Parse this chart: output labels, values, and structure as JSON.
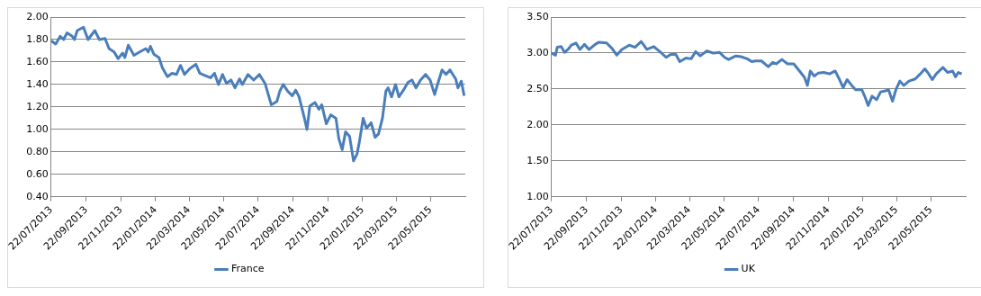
{
  "chart_data": [
    {
      "type": "line",
      "x": [
        "2013-07-22",
        "2013-07-30",
        "2013-08-07",
        "2013-08-13",
        "2013-08-19",
        "2013-08-28",
        "2013-09-01",
        "2013-09-06",
        "2013-09-17",
        "2013-09-25",
        "2013-10-07",
        "2013-10-15",
        "2013-10-25",
        "2013-11-01",
        "2013-11-10",
        "2013-11-17",
        "2013-11-25",
        "2013-11-29",
        "2013-12-05",
        "2013-12-15",
        "2013-12-25",
        "2014-01-05",
        "2014-01-09",
        "2014-01-13",
        "2014-01-19",
        "2014-01-28",
        "2014-02-03",
        "2014-02-12",
        "2014-02-20",
        "2014-02-28",
        "2014-03-07",
        "2014-03-14",
        "2014-03-23",
        "2014-04-03",
        "2014-04-10",
        "2014-04-19",
        "2014-04-29",
        "2014-05-06",
        "2014-05-13",
        "2014-05-20",
        "2014-05-27",
        "2014-06-04",
        "2014-06-11",
        "2014-06-19",
        "2014-06-24",
        "2014-07-04",
        "2014-07-14",
        "2014-07-24",
        "2014-08-03",
        "2014-08-14",
        "2014-08-24",
        "2014-08-29",
        "2014-09-04",
        "2014-09-12",
        "2014-09-20",
        "2014-09-26",
        "2014-10-02",
        "2014-10-10",
        "2014-10-16",
        "2014-10-21",
        "2014-10-30",
        "2014-11-06",
        "2014-11-11",
        "2014-11-19",
        "2014-11-27",
        "2014-12-06",
        "2014-12-11",
        "2014-12-17",
        "2014-12-23",
        "2014-12-30",
        "2015-01-06",
        "2015-01-12",
        "2015-01-16",
        "2015-01-23",
        "2015-01-29",
        "2015-02-06",
        "2015-02-13",
        "2015-02-19",
        "2015-02-26",
        "2015-03-04",
        "2015-03-08",
        "2015-03-14",
        "2015-03-21",
        "2015-03-27",
        "2015-04-04",
        "2015-04-12",
        "2015-04-19",
        "2015-04-26",
        "2015-05-04",
        "2015-05-13",
        "2015-05-21",
        "2015-05-29",
        "2015-06-03",
        "2015-06-11",
        "2015-06-18",
        "2015-06-25",
        "2015-07-05",
        "2015-07-09",
        "2015-07-15",
        "2015-07-20"
      ],
      "series": [
        {
          "name": "France",
          "color": "#4a7ebb",
          "values": [
            1.79,
            1.76,
            1.83,
            1.8,
            1.86,
            1.83,
            1.8,
            1.88,
            1.91,
            1.8,
            1.88,
            1.8,
            1.81,
            1.72,
            1.69,
            1.63,
            1.68,
            1.64,
            1.75,
            1.66,
            1.69,
            1.72,
            1.69,
            1.74,
            1.67,
            1.64,
            1.55,
            1.47,
            1.5,
            1.49,
            1.57,
            1.49,
            1.54,
            1.58,
            1.5,
            1.48,
            1.46,
            1.5,
            1.4,
            1.49,
            1.41,
            1.44,
            1.37,
            1.45,
            1.4,
            1.49,
            1.44,
            1.49,
            1.41,
            1.22,
            1.25,
            1.34,
            1.4,
            1.34,
            1.3,
            1.35,
            1.29,
            1.13,
            1.0,
            1.21,
            1.24,
            1.18,
            1.22,
            1.05,
            1.13,
            1.1,
            0.92,
            0.82,
            0.98,
            0.94,
            0.72,
            0.78,
            0.88,
            1.1,
            1.01,
            1.06,
            0.93,
            0.96,
            1.1,
            1.34,
            1.37,
            1.29,
            1.4,
            1.29,
            1.35,
            1.42,
            1.44,
            1.37,
            1.44,
            1.49,
            1.44,
            1.31,
            1.4,
            1.53,
            1.49,
            1.53,
            1.45,
            1.37,
            1.43,
            1.3
          ]
        }
      ],
      "xlim": [
        "2013-07-22",
        "2015-07-22"
      ],
      "xticks": [
        {
          "value": "2013-07-22",
          "label": "22/07/2013"
        },
        {
          "value": "2013-09-22",
          "label": "22/09/2013"
        },
        {
          "value": "2013-11-22",
          "label": "22/11/2013"
        },
        {
          "value": "2014-01-22",
          "label": "22/01/2014"
        },
        {
          "value": "2014-03-22",
          "label": "22/03/2014"
        },
        {
          "value": "2014-05-22",
          "label": "22/05/2014"
        },
        {
          "value": "2014-07-22",
          "label": "22/07/2014"
        },
        {
          "value": "2014-09-22",
          "label": "22/09/2014"
        },
        {
          "value": "2014-11-22",
          "label": "22/11/2014"
        },
        {
          "value": "2015-01-22",
          "label": "22/01/2015"
        },
        {
          "value": "2015-03-22",
          "label": "22/03/2015"
        },
        {
          "value": "2015-05-22",
          "label": "22/05/2015"
        }
      ],
      "ylim": [
        0.4,
        2.0
      ],
      "yticks": [
        {
          "value": 0.4,
          "label": "0.40"
        },
        {
          "value": 0.6,
          "label": "0.60"
        },
        {
          "value": 0.8,
          "label": "0.80"
        },
        {
          "value": 1.0,
          "label": "1.00"
        },
        {
          "value": 1.2,
          "label": "1.20"
        },
        {
          "value": 1.4,
          "label": "1.40"
        },
        {
          "value": 1.6,
          "label": "1.60"
        },
        {
          "value": 1.8,
          "label": "1.80"
        },
        {
          "value": 2.0,
          "label": "2.00"
        }
      ],
      "grid": "y",
      "legend": "bottom",
      "marker": "none"
    },
    {
      "type": "line",
      "x": [
        "2013-07-22",
        "2013-07-29",
        "2013-08-01",
        "2013-08-08",
        "2013-08-14",
        "2013-08-20",
        "2013-08-26",
        "2013-09-03",
        "2013-09-10",
        "2013-09-18",
        "2013-09-26",
        "2013-10-07",
        "2013-10-13",
        "2013-10-27",
        "2013-11-06",
        "2013-11-14",
        "2013-11-23",
        "2013-12-06",
        "2013-12-16",
        "2013-12-27",
        "2014-01-06",
        "2014-01-18",
        "2014-01-29",
        "2014-02-09",
        "2014-02-17",
        "2014-02-26",
        "2014-03-05",
        "2014-03-16",
        "2014-03-25",
        "2014-04-02",
        "2014-04-10",
        "2014-04-22",
        "2014-05-03",
        "2014-05-14",
        "2014-05-23",
        "2014-05-30",
        "2014-06-12",
        "2014-06-21",
        "2014-07-02",
        "2014-07-10",
        "2014-07-16",
        "2014-07-27",
        "2014-08-08",
        "2014-08-16",
        "2014-08-22",
        "2014-09-01",
        "2014-09-11",
        "2014-09-22",
        "2014-10-04",
        "2014-10-11",
        "2014-10-16",
        "2014-10-21",
        "2014-10-28",
        "2014-11-04",
        "2014-11-14",
        "2014-11-24",
        "2014-12-04",
        "2014-12-11",
        "2014-12-18",
        "2014-12-25",
        "2015-01-02",
        "2015-01-09",
        "2015-01-20",
        "2015-01-26",
        "2015-01-31",
        "2015-02-07",
        "2015-02-15",
        "2015-02-22",
        "2015-03-01",
        "2015-03-08",
        "2015-03-15",
        "2015-03-21",
        "2015-03-28",
        "2015-04-04",
        "2015-04-13",
        "2015-04-24",
        "2015-05-03",
        "2015-05-11",
        "2015-05-17",
        "2015-05-24",
        "2015-05-31",
        "2015-06-12",
        "2015-06-20",
        "2015-06-29",
        "2015-07-04",
        "2015-07-09",
        "2015-07-15"
      ],
      "series": [
        {
          "name": "UK",
          "color": "#4a7ebb",
          "values": [
            3.0,
            2.97,
            3.08,
            3.09,
            3.01,
            3.05,
            3.11,
            3.14,
            3.05,
            3.12,
            3.05,
            3.12,
            3.15,
            3.14,
            3.06,
            2.97,
            3.05,
            3.11,
            3.08,
            3.16,
            3.05,
            3.09,
            3.02,
            2.94,
            2.98,
            2.98,
            2.88,
            2.93,
            2.92,
            3.02,
            2.96,
            3.03,
            3.0,
            3.01,
            2.94,
            2.91,
            2.96,
            2.95,
            2.92,
            2.88,
            2.89,
            2.89,
            2.81,
            2.87,
            2.85,
            2.91,
            2.85,
            2.85,
            2.73,
            2.66,
            2.55,
            2.75,
            2.68,
            2.72,
            2.73,
            2.71,
            2.75,
            2.64,
            2.52,
            2.63,
            2.55,
            2.49,
            2.49,
            2.38,
            2.27,
            2.4,
            2.35,
            2.46,
            2.47,
            2.49,
            2.33,
            2.49,
            2.61,
            2.55,
            2.61,
            2.64,
            2.71,
            2.78,
            2.72,
            2.63,
            2.71,
            2.8,
            2.73,
            2.75,
            2.67,
            2.73,
            2.71
          ]
        }
      ],
      "xlim": [
        "2013-07-22",
        "2015-07-22"
      ],
      "xticks": [
        {
          "value": "2013-07-22",
          "label": "22/07/2013"
        },
        {
          "value": "2013-09-22",
          "label": "22/09/2013"
        },
        {
          "value": "2013-11-22",
          "label": "22/11/2013"
        },
        {
          "value": "2014-01-22",
          "label": "22/01/2014"
        },
        {
          "value": "2014-03-22",
          "label": "22/03/2014"
        },
        {
          "value": "2014-05-22",
          "label": "22/05/2014"
        },
        {
          "value": "2014-07-22",
          "label": "22/07/2014"
        },
        {
          "value": "2014-09-22",
          "label": "22/09/2014"
        },
        {
          "value": "2014-11-22",
          "label": "22/11/2014"
        },
        {
          "value": "2015-01-22",
          "label": "22/01/2015"
        },
        {
          "value": "2015-03-22",
          "label": "22/03/2015"
        },
        {
          "value": "2015-05-22",
          "label": "22/05/2015"
        }
      ],
      "ylim": [
        1.0,
        3.5
      ],
      "yticks": [
        {
          "value": 1.0,
          "label": "1.00"
        },
        {
          "value": 1.5,
          "label": "1.50"
        },
        {
          "value": 2.0,
          "label": "2.00"
        },
        {
          "value": 2.5,
          "label": "2.50"
        },
        {
          "value": 3.0,
          "label": "3.00"
        },
        {
          "value": 3.5,
          "label": "3.50"
        }
      ],
      "grid": "y",
      "legend": "bottom",
      "marker": "none"
    }
  ]
}
